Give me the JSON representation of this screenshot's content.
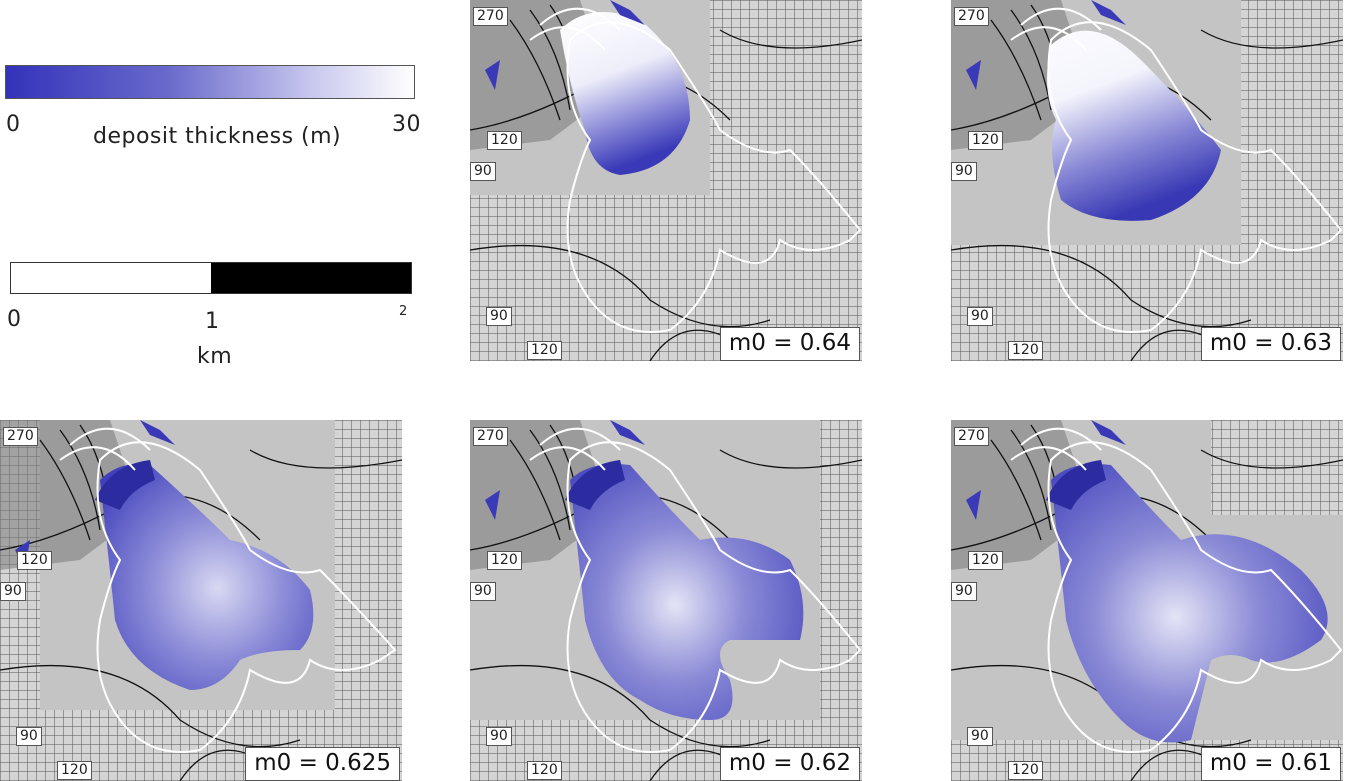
{
  "colorbar": {
    "min_label": "0",
    "max_label": "30",
    "title": "deposit thickness (m)",
    "color_min": "#3333bb",
    "color_max": "#ffffff"
  },
  "scalebar": {
    "tick0": "0",
    "tick1": "1",
    "tick2": "2",
    "unit": "km"
  },
  "panels": [
    {
      "label": "m0 = 0.64",
      "contours": [
        "270",
        "120",
        "90",
        "90",
        "120"
      ]
    },
    {
      "label": "m0 = 0.63",
      "contours": [
        "270",
        "120",
        "90",
        "90",
        "120"
      ]
    },
    {
      "label": "m0 = 0.625",
      "contours": [
        "270",
        "120",
        "90",
        "90",
        "120"
      ]
    },
    {
      "label": "m0 = 0.62",
      "contours": [
        "270",
        "120",
        "90",
        "90",
        "120"
      ]
    },
    {
      "label": "m0 = 0.61",
      "contours": [
        "270",
        "120",
        "90",
        "90",
        "120"
      ]
    }
  ],
  "colors": {
    "deposit_dark": "#3a3ab8",
    "deposit_light": "#ffffff",
    "terrain": "#c4c4c4",
    "outline": "#ffffff",
    "contour": "#111111"
  }
}
